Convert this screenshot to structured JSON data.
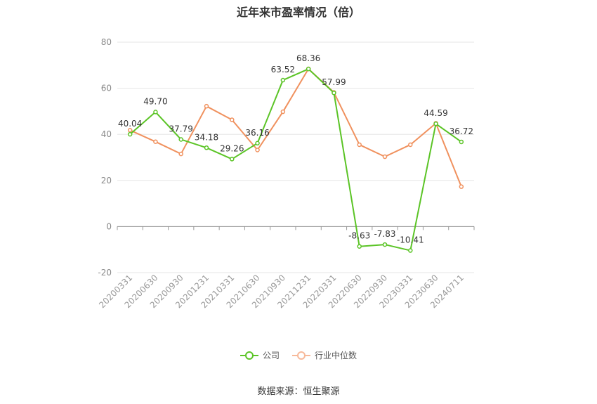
{
  "chart_data": {
    "type": "line",
    "title": "近年来市盈率情况（倍）",
    "categories": [
      "20200331",
      "20200630",
      "20200930",
      "20201231",
      "20210331",
      "20210630",
      "20210930",
      "20211231",
      "20220331",
      "20220630",
      "20220930",
      "20230331",
      "20230630",
      "20240711"
    ],
    "series": [
      {
        "name": "公司",
        "color": "#5bc426",
        "values": [
          40.04,
          49.7,
          37.79,
          34.18,
          29.26,
          36.16,
          63.52,
          68.36,
          57.99,
          -8.63,
          -7.83,
          -10.41,
          44.59,
          36.72
        ],
        "labels": [
          "40.04",
          "49.70",
          "37.79",
          "34.18",
          "29.26",
          "36.16",
          "63.52",
          "68.36",
          "57.99",
          "-8.63",
          "-7.83",
          "-10.41",
          "44.59",
          "36.72"
        ]
      },
      {
        "name": "行业中位数",
        "color": "#f0915e",
        "values": [
          41.8,
          36.8,
          31.5,
          52.2,
          46.3,
          33.2,
          49.8,
          68.4,
          58.2,
          35.5,
          30.3,
          35.5,
          44.8,
          17.3
        ]
      }
    ],
    "yticks": [
      -20,
      0,
      20,
      40,
      60,
      80
    ],
    "ylim": [
      -20,
      80
    ],
    "grid": true,
    "legend": "bottom-center",
    "source": "数据来源：恒生聚源"
  }
}
